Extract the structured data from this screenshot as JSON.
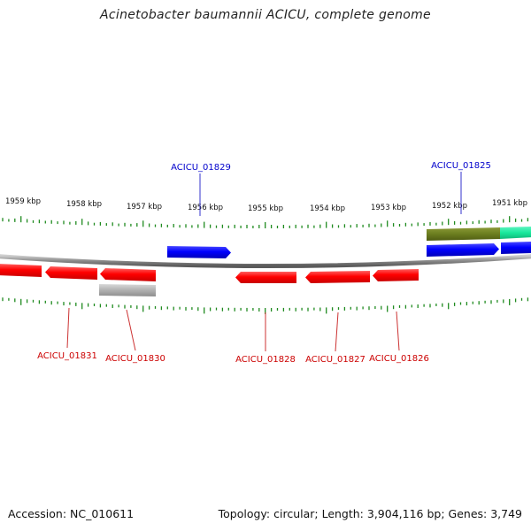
{
  "title": "Acinetobacter baumannii ACICU, complete genome",
  "footer": {
    "accession": "Accession: NC_010611",
    "summary": "Topology: circular; Length: 3,904,116 bp; Genes: 3,749"
  },
  "colors": {
    "forward_gene": "#0000ff",
    "reverse_gene": "#ff0000",
    "forward_label": "#0000cc",
    "reverse_label": "#cc0000",
    "feature_olive": "#6b7d1f",
    "feature_cyan": "#19e89c",
    "feature_grey": "#b0b0b0",
    "tick": "#1f8a1f",
    "backbone": "#8a8a8a"
  },
  "scale_labels": [
    "1959 kbp",
    "1958 kbp",
    "1957 kbp",
    "1956 kbp",
    "1955 kbp",
    "1954 kbp",
    "1953 kbp",
    "1952 kbp",
    "1951 kbp"
  ],
  "forward_gene_labels": [
    "ACICU_01829",
    "ACICU_01825"
  ],
  "reverse_gene_labels": [
    "ACICU_01831",
    "ACICU_01830",
    "ACICU_01828",
    "ACICU_01827",
    "ACICU_01826"
  ]
}
